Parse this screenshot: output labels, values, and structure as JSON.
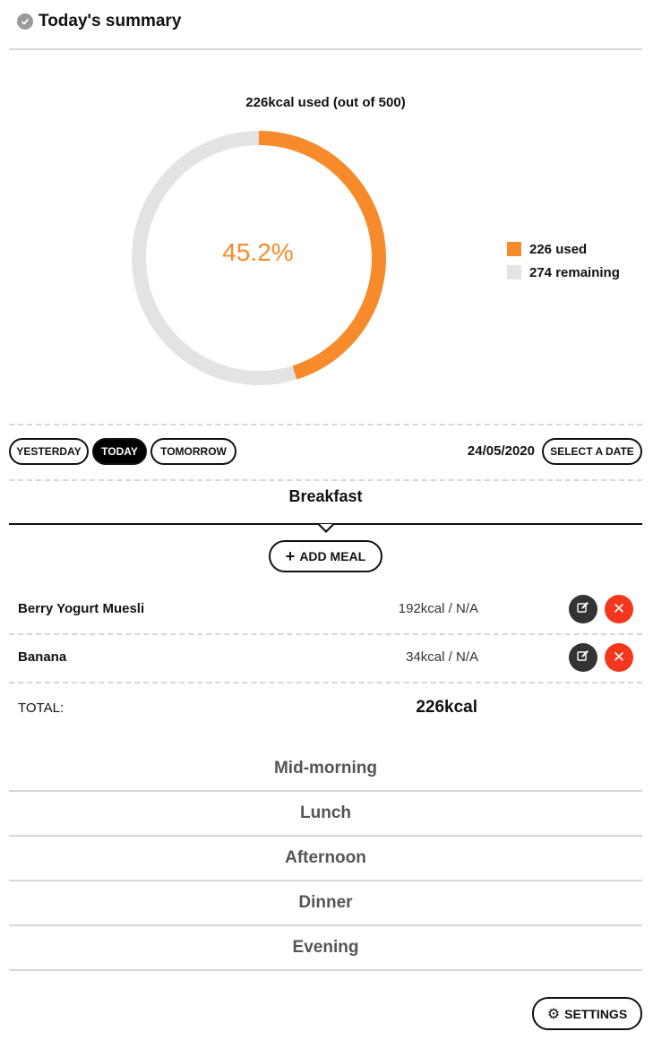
{
  "header": {
    "title": "Today's summary",
    "icon": "check-circle-icon"
  },
  "chart_data": {
    "type": "pie",
    "title": "226kcal used (out of 500)",
    "center_label": "45.2%",
    "categories": [
      "226 used",
      "274 remaining"
    ],
    "values": [
      226,
      274
    ],
    "colors": [
      "#f78a2a",
      "#e3e3e3"
    ],
    "legend_position": "right"
  },
  "date_nav": {
    "yesterday": "YESTERDAY",
    "today": "TODAY",
    "tomorrow": "TOMORROW",
    "date": "24/05/2020",
    "select_date": "SELECT A DATE"
  },
  "meal": {
    "heading": "Breakfast",
    "add_meal": "ADD MEAL",
    "items": [
      {
        "name": "Berry Yogurt Muesli",
        "kcal": "192kcal / N/A"
      },
      {
        "name": "Banana",
        "kcal": "34kcal / N/A"
      }
    ],
    "total_label": "TOTAL:",
    "total_value": "226kcal"
  },
  "sections": [
    "Mid-morning",
    "Lunch",
    "Afternoon",
    "Dinner",
    "Evening"
  ],
  "footer": {
    "settings": "SETTINGS"
  },
  "colors": {
    "accent": "#f78a2a",
    "danger": "#f2371c",
    "dark": "#333333"
  }
}
